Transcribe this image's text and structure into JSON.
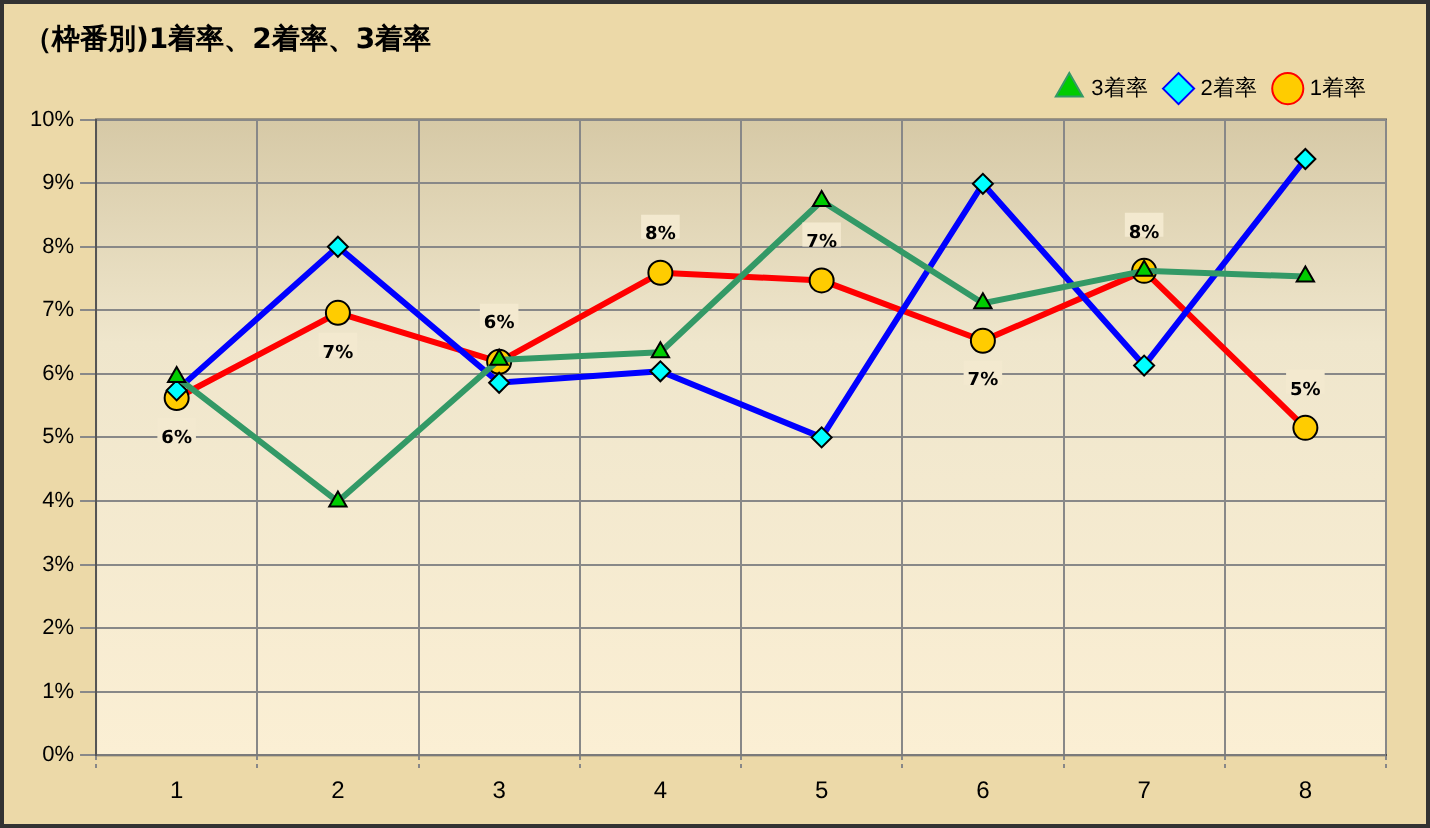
{
  "chart_data": {
    "type": "line",
    "title": "（枠番別)1着率、2着率、3着率",
    "categories": [
      "1",
      "2",
      "3",
      "4",
      "5",
      "6",
      "7",
      "8"
    ],
    "series": [
      {
        "name": "3着率",
        "color": "#339966",
        "marker": "triangle",
        "values": [
          5.95,
          3.99,
          6.22,
          6.34,
          8.72,
          7.11,
          7.62,
          7.53
        ]
      },
      {
        "name": "2着率",
        "color": "#0000ff",
        "marker": "diamond",
        "values": [
          5.74,
          8.0,
          5.86,
          6.04,
          5.0,
          8.99,
          6.13,
          9.38
        ]
      },
      {
        "name": "1着率",
        "color": "#ff0000",
        "marker": "circle",
        "values": [
          5.62,
          6.96,
          6.19,
          7.59,
          7.47,
          6.52,
          7.62,
          5.15
        ],
        "value_labels": [
          "6%",
          "7%",
          "6%",
          "8%",
          "7%",
          "7%",
          "8%",
          "5%"
        ]
      }
    ],
    "ylim": [
      0,
      10
    ],
    "yticks": [
      {
        "value": 0,
        "label": "0%"
      },
      {
        "value": 1,
        "label": "1%"
      },
      {
        "value": 2,
        "label": "2%"
      },
      {
        "value": 3,
        "label": "3%"
      },
      {
        "value": 4,
        "label": "4%"
      },
      {
        "value": 5,
        "label": "5%"
      },
      {
        "value": 6,
        "label": "6%"
      },
      {
        "value": 7,
        "label": "7%"
      },
      {
        "value": 8,
        "label": "8%"
      },
      {
        "value": 9,
        "label": "9%"
      },
      {
        "value": 10,
        "label": "10%"
      }
    ],
    "grid": true,
    "legend": "top right",
    "line_style": "solid"
  }
}
